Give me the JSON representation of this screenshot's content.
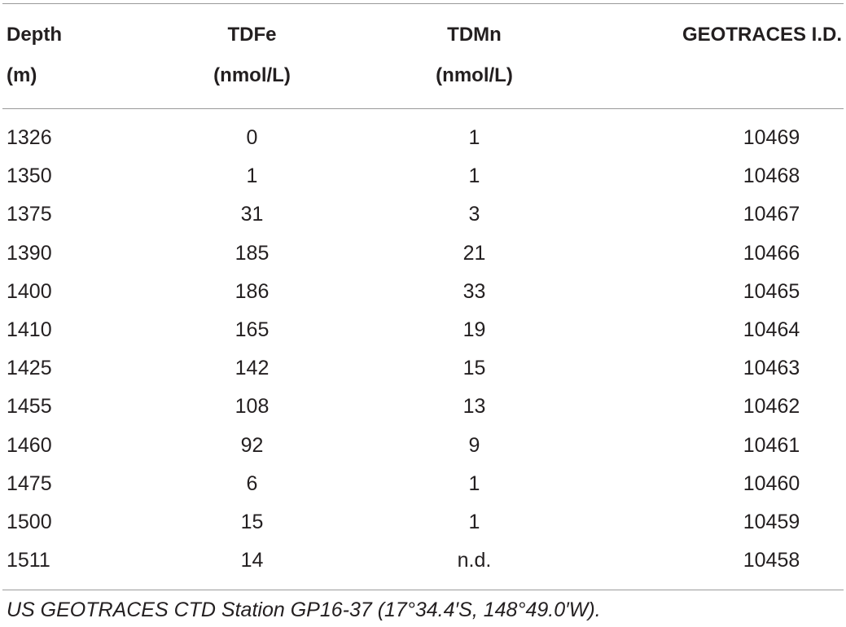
{
  "table": {
    "headers": {
      "depth": [
        "Depth",
        "(m)"
      ],
      "tdfe": [
        "TDFe",
        "(nmol/L)"
      ],
      "tdmn": [
        "TDMn",
        "(nmol/L)"
      ],
      "geotraces_id": [
        "GEOTRACES I.D."
      ]
    },
    "rows": [
      {
        "depth": "1326",
        "tdfe": "0",
        "tdmn": "1",
        "id": "10469"
      },
      {
        "depth": "1350",
        "tdfe": "1",
        "tdmn": "1",
        "id": "10468"
      },
      {
        "depth": "1375",
        "tdfe": "31",
        "tdmn": "3",
        "id": "10467"
      },
      {
        "depth": "1390",
        "tdfe": "185",
        "tdmn": "21",
        "id": "10466"
      },
      {
        "depth": "1400",
        "tdfe": "186",
        "tdmn": "33",
        "id": "10465"
      },
      {
        "depth": "1410",
        "tdfe": "165",
        "tdmn": "19",
        "id": "10464"
      },
      {
        "depth": "1425",
        "tdfe": "142",
        "tdmn": "15",
        "id": "10463"
      },
      {
        "depth": "1455",
        "tdfe": "108",
        "tdmn": "13",
        "id": "10462"
      },
      {
        "depth": "1460",
        "tdfe": "92",
        "tdmn": "9",
        "id": "10461"
      },
      {
        "depth": "1475",
        "tdfe": "6",
        "tdmn": "1",
        "id": "10460"
      },
      {
        "depth": "1500",
        "tdfe": "15",
        "tdmn": "1",
        "id": "10459"
      },
      {
        "depth": "1511",
        "tdfe": "14",
        "tdmn": "n.d.",
        "id": "10458"
      }
    ]
  },
  "footnote": "US GEOTRACES CTD Station GP16-37 (17°34.4′S, 148°49.0′W)."
}
